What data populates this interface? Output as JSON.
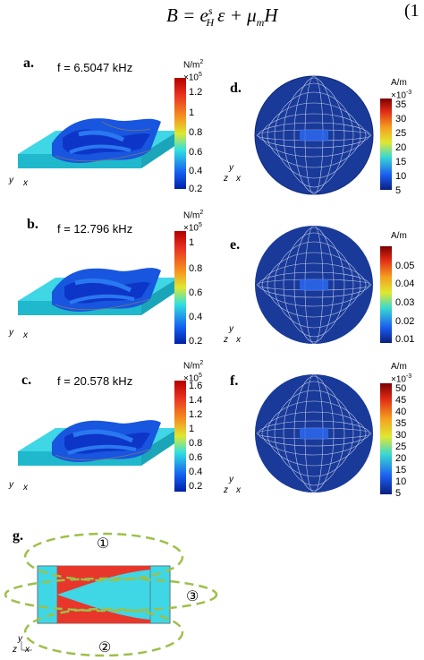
{
  "equation": {
    "text_b": "B = e",
    "sup": "s",
    "sub": "H",
    "rest": "ε + μ",
    "sub2": "m",
    "tail": "H",
    "number": "(1"
  },
  "panels": {
    "a": {
      "label": "a.",
      "freq": "f = 6.5047 kHz",
      "unit_main": "N/m",
      "unit_sup": "2",
      "unit_exp": "×10",
      "unit_exp_sup": "5",
      "ticks": [
        "1.2",
        "1",
        "0.8",
        "0.6",
        "0.4",
        "0.2"
      ]
    },
    "b": {
      "label": "b.",
      "freq": "f = 12.796 kHz",
      "unit_main": "N/m",
      "unit_sup": "2",
      "unit_exp": "×10",
      "unit_exp_sup": "5",
      "ticks": [
        "1",
        "0.8",
        "0.6",
        "0.4",
        "0.2"
      ]
    },
    "c": {
      "label": "c.",
      "freq": "f = 20.578 kHz",
      "unit_main": "N/m",
      "unit_sup": "2",
      "unit_exp": "×10",
      "unit_exp_sup": "5",
      "ticks": [
        "1.6",
        "1.4",
        "1.2",
        "1",
        "0.8",
        "0.6",
        "0.4",
        "0.2"
      ]
    },
    "d": {
      "label": "d.",
      "unit_main": "A/m",
      "unit_exp": "×10",
      "unit_exp_sup": "-3",
      "ticks": [
        "35",
        "30",
        "25",
        "20",
        "15",
        "10",
        "5"
      ]
    },
    "e": {
      "label": "e.",
      "unit_main": "A/m",
      "ticks": [
        "0.05",
        "0.04",
        "0.03",
        "0.02",
        "0.01"
      ]
    },
    "f": {
      "label": "f.",
      "unit_main": "A/m",
      "unit_exp": "×10",
      "unit_exp_sup": "-3",
      "ticks": [
        "50",
        "45",
        "40",
        "35",
        "30",
        "25",
        "20",
        "15",
        "10",
        "5"
      ]
    },
    "g": {
      "label": "g.",
      "region1": "①",
      "region2": "②",
      "region3": "③"
    }
  },
  "axes": {
    "y": "y",
    "z": "z",
    "x": "x"
  }
}
